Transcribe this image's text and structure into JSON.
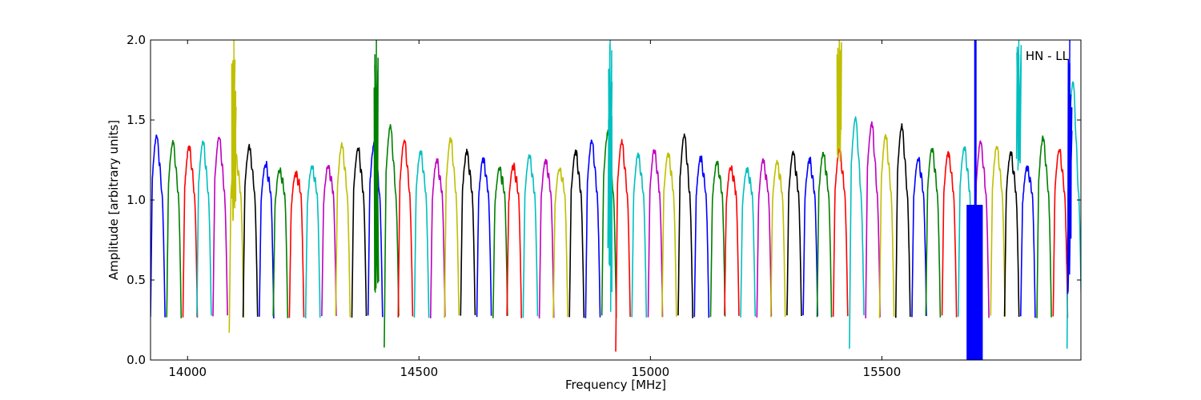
{
  "chart_data": {
    "type": "line",
    "title": "",
    "xlabel": "Frequency [MHz]",
    "ylabel": "Amplitude [arbitrary units]",
    "xlim": [
      13920,
      15930
    ],
    "ylim": [
      0.0,
      2.0
    ],
    "x_ticks": [
      14000,
      14500,
      15000,
      15500
    ],
    "x_tick_labels": [
      "14000",
      "14500",
      "15000",
      "15500"
    ],
    "y_ticks": [
      0.0,
      0.5,
      1.0,
      1.5,
      2.0
    ],
    "y_tick_labels": [
      "0.0",
      "0.5",
      "1.0",
      "1.5",
      "2.0"
    ],
    "grid": false,
    "legend": {
      "text": "HN - LL",
      "placement": "top-right"
    },
    "channel_width_mhz": 31.25,
    "colors": [
      "#0000ff",
      "#008000",
      "#ff0000",
      "#00bfbf",
      "#bf00bf",
      "#bfbf00",
      "#000000"
    ],
    "channel_starts_mhz": [
      13920,
      13955,
      13990,
      14020,
      14055,
      14090,
      14120,
      14155,
      14185,
      14220,
      14255,
      14290,
      14320,
      14355,
      14390,
      14425,
      14455,
      14490,
      14525,
      14555,
      14590,
      14625,
      14660,
      14690,
      14725,
      14760,
      14790,
      14825,
      14860,
      14895,
      14925,
      14960,
      14995,
      15025,
      15060,
      15095,
      15130,
      15160,
      15195,
      15230,
      15260,
      15295,
      15330,
      15360,
      15395,
      15430,
      15465,
      15495,
      15530,
      15565,
      15595,
      15630,
      15665,
      15700,
      15735,
      15765,
      15800,
      15835,
      15870,
      15900
    ],
    "channel_peaks": [
      1.41,
      1.37,
      1.34,
      1.37,
      1.4,
      1.3,
      1.34,
      1.23,
      1.19,
      1.17,
      1.21,
      1.22,
      1.35,
      1.33,
      1.36,
      1.47,
      1.38,
      1.31,
      1.25,
      1.39,
      1.31,
      1.26,
      1.2,
      1.22,
      1.28,
      1.25,
      1.2,
      1.31,
      1.38,
      1.43,
      1.37,
      1.29,
      1.32,
      1.3,
      1.41,
      1.27,
      1.24,
      1.21,
      1.2,
      1.25,
      1.24,
      1.3,
      1.26,
      1.3,
      1.32,
      1.52,
      1.49,
      1.41,
      1.47,
      1.26,
      1.33,
      1.3,
      1.34,
      1.37,
      1.34,
      1.3,
      1.21,
      1.4,
      1.32,
      1.75
    ],
    "channel_floor": 0.27,
    "deep_dips": [
      {
        "x": 14100,
        "y": 0.17
      },
      {
        "x": 14425,
        "y": 0.07
      },
      {
        "x": 14925,
        "y": 0.06
      },
      {
        "x": 15425,
        "y": 0.07
      },
      {
        "x": 15920,
        "y": 0.08
      }
    ],
    "spikes": [
      {
        "x": 14100,
        "y_min": 0.85,
        "y_max": 2.0,
        "color": "#bfbf00"
      },
      {
        "x": 14408,
        "y_min": 0.3,
        "y_max": 2.0,
        "color": "#008000"
      },
      {
        "x": 14913,
        "y_min": 0.25,
        "y_max": 2.0,
        "color": "#00bfbf"
      },
      {
        "x": 15408,
        "y_min": 1.15,
        "y_max": 2.0,
        "color": "#bfbf00"
      },
      {
        "x": 15796,
        "y_min": 1.15,
        "y_max": 2.0,
        "color": "#00bfbf"
      },
      {
        "x": 15906,
        "y_min": 0.3,
        "y_max": 2.0,
        "color": "#0000ff"
      }
    ],
    "noise_band": {
      "x_start": 15683,
      "x_end": 15718,
      "y_min": 0.0,
      "y_max": 0.97,
      "spike_x": 15702,
      "color": "#0000ff"
    }
  }
}
